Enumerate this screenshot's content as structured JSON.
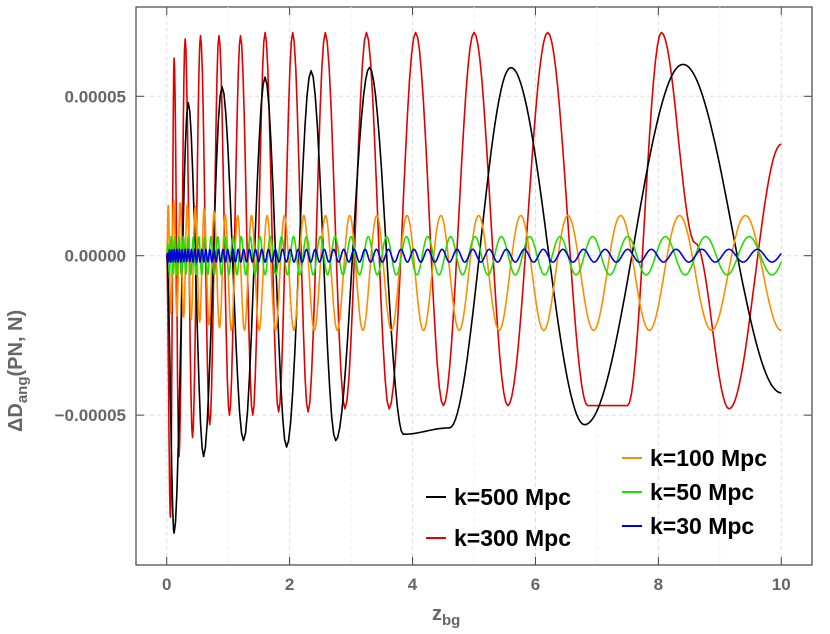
{
  "chart_data": {
    "type": "line",
    "title": "",
    "xlabel_main": "z",
    "xlabel_sub": "bg",
    "ylabel_main": "ΔD",
    "ylabel_sub": "ang",
    "ylabel_rest": "(PN, N)",
    "xlim": [
      -0.5,
      10.5
    ],
    "ylim": [
      -9.7e-05,
      7.8e-05
    ],
    "xticks": [
      0,
      2,
      4,
      6,
      8,
      10
    ],
    "xtick_labels": [
      "0",
      "2",
      "4",
      "6",
      "8",
      "10"
    ],
    "yticks": [
      5e-05,
      0.0,
      -5e-05
    ],
    "ytick_labels": [
      "0.00005",
      "0.00000",
      "-0.00005"
    ],
    "grid": true,
    "legend_position": "bottom-right",
    "series": [
      {
        "name": "k=500 Mpc",
        "color": "#000000",
        "x": [
          0.12,
          0.35,
          0.6,
          0.9,
          1.25,
          1.6,
          1.95,
          2.35,
          2.75,
          3.3,
          3.85,
          4.6,
          5.6,
          6.8,
          8.4,
          10.0
        ],
        "y": [
          -8.7e-05,
          4.8e-05,
          -6.3e-05,
          5.3e-05,
          -5.8e-05,
          5.6e-05,
          -6e-05,
          5.8e-05,
          -5.8e-05,
          5.9e-05,
          -5.6e-05,
          -5.4e-05,
          5.9e-05,
          -5.3e-05,
          6e-05,
          -4.3e-05
        ]
      },
      {
        "name": "k=300 Mpc",
        "color": "#e00000",
        "x": [
          0.06,
          0.12,
          0.2,
          0.3,
          0.42,
          0.55,
          0.7,
          0.85,
          1.02,
          1.2,
          1.4,
          1.6,
          1.82,
          2.05,
          2.3,
          2.58,
          2.9,
          3.25,
          3.62,
          4.05,
          4.5,
          5.0,
          5.55,
          6.2,
          6.85,
          7.5,
          8.05,
          8.6,
          9.15,
          10.0
        ],
        "y": [
          -8.2e-05,
          6.2e-05,
          -6.3e-05,
          6.8e-05,
          -5.7e-05,
          6.9e-05,
          -5.3e-05,
          6.9e-05,
          -5e-05,
          6.9e-05,
          -5e-05,
          7e-05,
          -4.9e-05,
          7e-05,
          -4.9e-05,
          7e-05,
          -4.8e-05,
          7e-05,
          -4.8e-05,
          7e-05,
          -4.7e-05,
          7e-05,
          -4.7e-05,
          7e-05,
          -4.7e-05,
          -4.7e-05,
          7e-05,
          4e-06,
          -4.8e-05,
          3.5e-05
        ]
      },
      {
        "name": "k=100 Mpc",
        "color": "#ff8c00",
        "x": [
          0.0,
          0.5,
          1.0,
          2.0,
          3.0,
          4.0,
          5.0,
          6.0,
          7.0,
          8.0,
          9.0,
          10.0
        ],
        "y": [
          0.0,
          1.8e-05,
          -1.8e-05,
          1.8e-05,
          -8e-06,
          1.8e-05,
          -8e-06,
          1.8e-05,
          -8e-06,
          1.8e-05,
          -8e-06,
          1.7e-05
        ],
        "amplitude": 1.8e-05
      },
      {
        "name": "k=50 Mpc",
        "color": "#22dd00",
        "x": [
          0.0,
          2.0,
          4.0,
          6.0,
          8.0,
          10.0
        ],
        "y": [
          0.0,
          6e-06,
          5e-06,
          5e-06,
          5e-06,
          5e-06
        ],
        "amplitude": 6e-06
      },
      {
        "name": "k=30 Mpc",
        "color": "#0000dd",
        "x": [
          0.0,
          2.0,
          4.0,
          6.0,
          8.0,
          10.0
        ],
        "y": [
          0.0,
          2e-06,
          2e-06,
          2e-06,
          2e-06,
          0.0
        ],
        "amplitude": 2e-06
      }
    ]
  }
}
